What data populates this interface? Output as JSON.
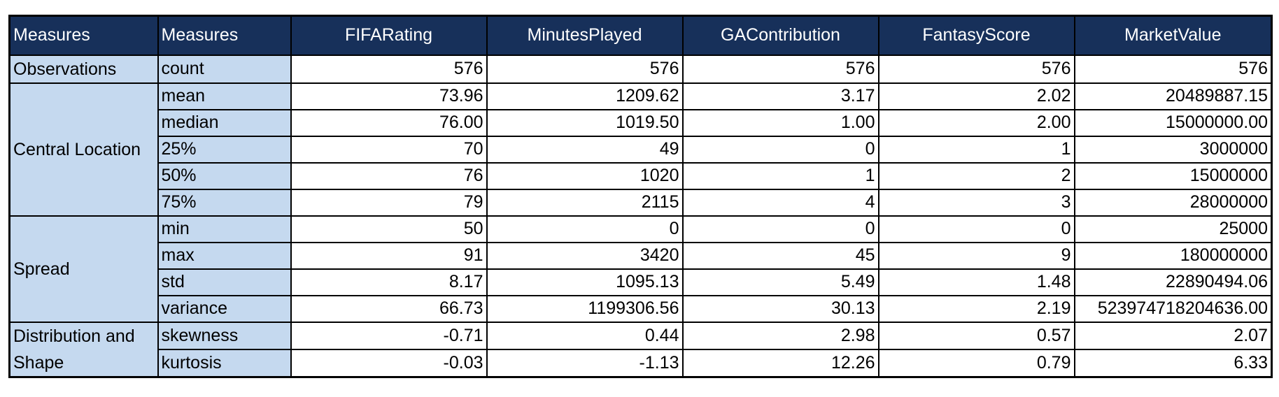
{
  "table": {
    "headers": [
      "Measures",
      "Measures",
      "FIFARating",
      "MinutesPlayed",
      "GAContribution",
      "FantasyScore",
      "MarketValue"
    ],
    "groups": [
      {
        "label": "Observations",
        "rows": [
          {
            "stat": "count",
            "values": [
              "576",
              "576",
              "576",
              "576",
              "576"
            ]
          }
        ]
      },
      {
        "label": "Central Location",
        "rows": [
          {
            "stat": "mean",
            "values": [
              "73.96",
              "1209.62",
              "3.17",
              "2.02",
              "20489887.15"
            ]
          },
          {
            "stat": "median",
            "values": [
              "76.00",
              "1019.50",
              "1.00",
              "2.00",
              "15000000.00"
            ]
          },
          {
            "stat": "25%",
            "values": [
              "70",
              "49",
              "0",
              "1",
              "3000000"
            ]
          },
          {
            "stat": "50%",
            "values": [
              "76",
              "1020",
              "1",
              "2",
              "15000000"
            ]
          },
          {
            "stat": "75%",
            "values": [
              "79",
              "2115",
              "4",
              "3",
              "28000000"
            ]
          }
        ]
      },
      {
        "label": "Spread",
        "rows": [
          {
            "stat": "min",
            "values": [
              "50",
              "0",
              "0",
              "0",
              "25000"
            ]
          },
          {
            "stat": "max",
            "values": [
              "91",
              "3420",
              "45",
              "9",
              "180000000"
            ]
          },
          {
            "stat": "std",
            "values": [
              "8.17",
              "1095.13",
              "5.49",
              "1.48",
              "22890494.06"
            ]
          },
          {
            "stat": "variance",
            "values": [
              "66.73",
              "1199306.56",
              "30.13",
              "2.19",
              "523974718204636.00"
            ]
          }
        ]
      },
      {
        "label": "Distribution and Shape",
        "rows": [
          {
            "stat": "skewness",
            "values": [
              "-0.71",
              "0.44",
              "2.98",
              "0.57",
              "2.07"
            ]
          },
          {
            "stat": "kurtosis",
            "values": [
              "-0.03",
              "-1.13",
              "12.26",
              "0.79",
              "6.33"
            ]
          }
        ]
      }
    ]
  }
}
